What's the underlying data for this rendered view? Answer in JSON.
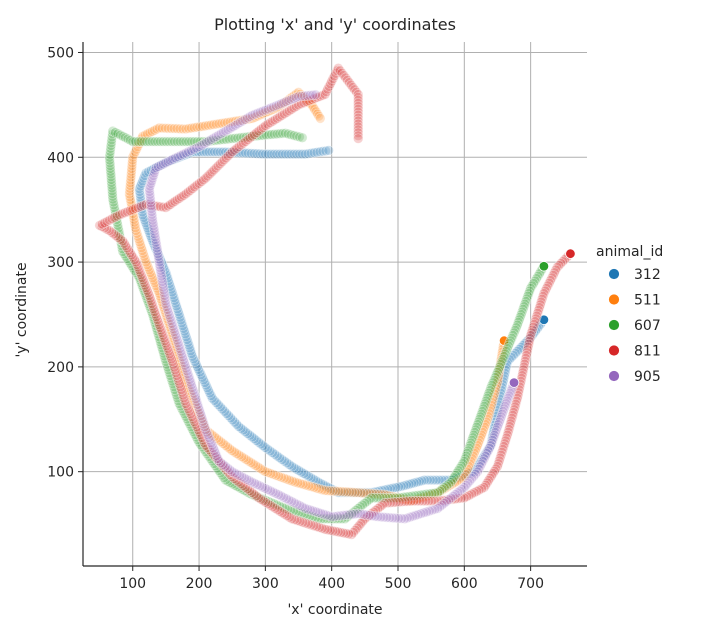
{
  "chart_data": {
    "type": "scatter",
    "title": "Plotting 'x' and 'y' coordinates",
    "xlabel": "'x' coordinate",
    "ylabel": "'y' coordinate",
    "xlim": [
      25,
      785
    ],
    "ylim": [
      10,
      510
    ],
    "xticks": [
      100,
      200,
      300,
      400,
      500,
      600,
      700
    ],
    "yticks": [
      100,
      200,
      300,
      400,
      500
    ],
    "grid": true,
    "legend": {
      "title": "animal_id",
      "placement": "right"
    },
    "series": [
      {
        "name": "312",
        "color": "#1f77b4",
        "path": [
          [
            720,
            245
          ],
          [
            700,
            228
          ],
          [
            680,
            215
          ],
          [
            665,
            205
          ],
          [
            655,
            175
          ],
          [
            640,
            125
          ],
          [
            615,
            100
          ],
          [
            580,
            92
          ],
          [
            540,
            92
          ],
          [
            505,
            86
          ],
          [
            460,
            80
          ],
          [
            410,
            80
          ],
          [
            380,
            90
          ],
          [
            340,
            105
          ],
          [
            300,
            123
          ],
          [
            260,
            143
          ],
          [
            220,
            170
          ],
          [
            190,
            210
          ],
          [
            170,
            250
          ],
          [
            150,
            290
          ],
          [
            130,
            320
          ],
          [
            115,
            345
          ],
          [
            110,
            370
          ],
          [
            120,
            385
          ],
          [
            150,
            395
          ],
          [
            190,
            405
          ],
          [
            240,
            405
          ],
          [
            300,
            403
          ],
          [
            360,
            403
          ],
          [
            400,
            407
          ]
        ]
      },
      {
        "name": "511",
        "color": "#ff7f0e",
        "path": [
          [
            660,
            225
          ],
          [
            650,
            185
          ],
          [
            635,
            150
          ],
          [
            620,
            125
          ],
          [
            600,
            95
          ],
          [
            560,
            80
          ],
          [
            520,
            72
          ],
          [
            480,
            78
          ],
          [
            440,
            80
          ],
          [
            390,
            82
          ],
          [
            345,
            90
          ],
          [
            300,
            100
          ],
          [
            250,
            120
          ],
          [
            210,
            140
          ],
          [
            180,
            185
          ],
          [
            160,
            230
          ],
          [
            140,
            270
          ],
          [
            120,
            300
          ],
          [
            105,
            330
          ],
          [
            95,
            365
          ],
          [
            100,
            400
          ],
          [
            115,
            420
          ],
          [
            140,
            428
          ],
          [
            180,
            427
          ],
          [
            230,
            432
          ],
          [
            280,
            437
          ],
          [
            320,
            448
          ],
          [
            350,
            462
          ],
          [
            370,
            450
          ],
          [
            385,
            435
          ]
        ]
      },
      {
        "name": "607",
        "color": "#2ca02c",
        "path": [
          [
            720,
            296
          ],
          [
            700,
            275
          ],
          [
            680,
            240
          ],
          [
            660,
            210
          ],
          [
            640,
            180
          ],
          [
            620,
            145
          ],
          [
            600,
            110
          ],
          [
            580,
            90
          ],
          [
            560,
            80
          ],
          [
            500,
            75
          ],
          [
            460,
            75
          ],
          [
            420,
            55
          ],
          [
            380,
            55
          ],
          [
            330,
            65
          ],
          [
            280,
            78
          ],
          [
            240,
            92
          ],
          [
            200,
            128
          ],
          [
            170,
            165
          ],
          [
            150,
            205
          ],
          [
            130,
            250
          ],
          [
            110,
            285
          ],
          [
            85,
            310
          ],
          [
            70,
            360
          ],
          [
            65,
            400
          ],
          [
            70,
            425
          ],
          [
            100,
            415
          ],
          [
            150,
            415
          ],
          [
            210,
            415
          ],
          [
            280,
            420
          ],
          [
            330,
            423
          ],
          [
            360,
            418
          ]
        ]
      },
      {
        "name": "811",
        "color": "#d62728",
        "path": [
          [
            760,
            308
          ],
          [
            740,
            295
          ],
          [
            720,
            270
          ],
          [
            700,
            230
          ],
          [
            680,
            170
          ],
          [
            665,
            135
          ],
          [
            650,
            105
          ],
          [
            630,
            85
          ],
          [
            600,
            75
          ],
          [
            560,
            72
          ],
          [
            520,
            72
          ],
          [
            480,
            70
          ],
          [
            450,
            55
          ],
          [
            430,
            40
          ],
          [
            390,
            45
          ],
          [
            340,
            55
          ],
          [
            290,
            75
          ],
          [
            250,
            95
          ],
          [
            210,
            125
          ],
          [
            180,
            165
          ],
          [
            160,
            205
          ],
          [
            140,
            240
          ],
          [
            125,
            268
          ],
          [
            105,
            300
          ],
          [
            85,
            320
          ],
          [
            65,
            330
          ],
          [
            50,
            335
          ],
          [
            80,
            345
          ],
          [
            120,
            355
          ],
          [
            150,
            352
          ],
          [
            180,
            365
          ],
          [
            210,
            380
          ],
          [
            250,
            405
          ],
          [
            300,
            430
          ],
          [
            350,
            450
          ],
          [
            390,
            460
          ],
          [
            410,
            485
          ],
          [
            440,
            460
          ],
          [
            440,
            415
          ]
        ]
      },
      {
        "name": "905",
        "color": "#9467bd",
        "path": [
          [
            675,
            185
          ],
          [
            660,
            160
          ],
          [
            640,
            125
          ],
          [
            620,
            100
          ],
          [
            600,
            85
          ],
          [
            560,
            65
          ],
          [
            510,
            55
          ],
          [
            470,
            57
          ],
          [
            440,
            60
          ],
          [
            400,
            57
          ],
          [
            360,
            65
          ],
          [
            320,
            78
          ],
          [
            280,
            90
          ],
          [
            250,
            100
          ],
          [
            230,
            110
          ],
          [
            210,
            140
          ],
          [
            190,
            180
          ],
          [
            170,
            220
          ],
          [
            150,
            260
          ],
          [
            140,
            300
          ],
          [
            130,
            340
          ],
          [
            125,
            370
          ],
          [
            135,
            390
          ],
          [
            160,
            398
          ],
          [
            200,
            410
          ],
          [
            240,
            425
          ],
          [
            280,
            440
          ],
          [
            320,
            450
          ],
          [
            350,
            458
          ],
          [
            380,
            460
          ]
        ]
      }
    ]
  }
}
